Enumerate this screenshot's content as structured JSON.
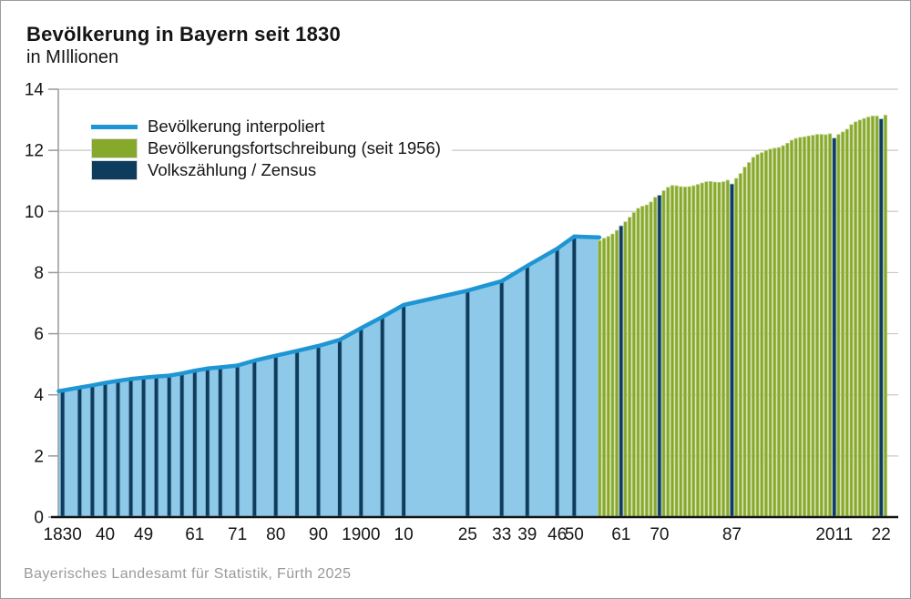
{
  "header": {
    "title": "Bevölkerung in Bayern seit 1830",
    "subtitle": "in MIllionen"
  },
  "footer": {
    "source": "Bayerisches Landesamt für Statistik, Fürth 2025"
  },
  "legend": {
    "items": [
      {
        "label": "Bevölkerung interpoliert",
        "type": "line",
        "color": "#1e96d4"
      },
      {
        "label": "Bevölkerungsfortschreibung (seit 1956)",
        "type": "box",
        "color": "#86a92c"
      },
      {
        "label": "Volkszählung / Zensus",
        "type": "box",
        "color": "#0d3c5d"
      }
    ]
  },
  "chart_data": {
    "type": "area+bar",
    "title": "Bevölkerung in Bayern seit 1830",
    "ylabel": "in Millionen",
    "ylim": [
      0,
      14
    ],
    "yticks": [
      0,
      2,
      4,
      6,
      8,
      10,
      12,
      14
    ],
    "grid": "horizontal",
    "legend_position": "top-left-inside",
    "xtick_labels": [
      {
        "year": 1830,
        "label": "1830"
      },
      {
        "year": 1840,
        "label": "40"
      },
      {
        "year": 1849,
        "label": "49"
      },
      {
        "year": 1861,
        "label": "61"
      },
      {
        "year": 1871,
        "label": "71"
      },
      {
        "year": 1880,
        "label": "80"
      },
      {
        "year": 1890,
        "label": "90"
      },
      {
        "year": 1900,
        "label": "1900"
      },
      {
        "year": 1910,
        "label": "10"
      },
      {
        "year": 1925,
        "label": "25"
      },
      {
        "year": 1933,
        "label": "33"
      },
      {
        "year": 1939,
        "label": "39"
      },
      {
        "year": 1946,
        "label": "46"
      },
      {
        "year": 1950,
        "label": "50"
      },
      {
        "year": 1961,
        "label": "61"
      },
      {
        "year": 1970,
        "label": "70"
      },
      {
        "year": 1987,
        "label": "87"
      },
      {
        "year": 2011,
        "label": "2011"
      },
      {
        "year": 2022,
        "label": "22"
      }
    ],
    "interpolated": {
      "name": "Bevölkerung interpoliert",
      "points": [
        [
          1829.1,
          4.12
        ],
        [
          1830,
          4.14
        ],
        [
          1834,
          4.24
        ],
        [
          1837,
          4.31
        ],
        [
          1840,
          4.39
        ],
        [
          1843,
          4.46
        ],
        [
          1846,
          4.52
        ],
        [
          1849,
          4.56
        ],
        [
          1852,
          4.6
        ],
        [
          1855,
          4.63
        ],
        [
          1858,
          4.7
        ],
        [
          1861,
          4.79
        ],
        [
          1864,
          4.86
        ],
        [
          1867,
          4.9
        ],
        [
          1871,
          4.96
        ],
        [
          1875,
          5.12
        ],
        [
          1880,
          5.28
        ],
        [
          1885,
          5.44
        ],
        [
          1890,
          5.6
        ],
        [
          1895,
          5.8
        ],
        [
          1900,
          6.18
        ],
        [
          1905,
          6.55
        ],
        [
          1910,
          6.94
        ],
        [
          1925,
          7.41
        ],
        [
          1933,
          7.72
        ],
        [
          1939,
          8.22
        ],
        [
          1946,
          8.78
        ],
        [
          1950,
          9.18
        ],
        [
          1955.9,
          9.15
        ]
      ]
    },
    "census_pre1956": {
      "name": "Volkszählung",
      "points": [
        [
          1830,
          4.14
        ],
        [
          1834,
          4.24
        ],
        [
          1837,
          4.31
        ],
        [
          1840,
          4.39
        ],
        [
          1843,
          4.46
        ],
        [
          1846,
          4.52
        ],
        [
          1849,
          4.56
        ],
        [
          1852,
          4.6
        ],
        [
          1855,
          4.63
        ],
        [
          1858,
          4.7
        ],
        [
          1861,
          4.79
        ],
        [
          1864,
          4.86
        ],
        [
          1867,
          4.9
        ],
        [
          1871,
          4.96
        ],
        [
          1875,
          5.12
        ],
        [
          1880,
          5.28
        ],
        [
          1885,
          5.44
        ],
        [
          1890,
          5.6
        ],
        [
          1895,
          5.8
        ],
        [
          1900,
          6.18
        ],
        [
          1905,
          6.55
        ],
        [
          1910,
          6.94
        ],
        [
          1925,
          7.41
        ],
        [
          1933,
          7.72
        ],
        [
          1939,
          8.22
        ],
        [
          1946,
          8.78
        ],
        [
          1950,
          9.18
        ]
      ]
    },
    "fortschreibung": {
      "name": "Bevölkerungsfortschreibung (seit 1956)",
      "start_year": 1956,
      "values": [
        9.05,
        9.12,
        9.18,
        9.26,
        9.38,
        9.53,
        9.66,
        9.81,
        9.96,
        10.1,
        10.17,
        10.21,
        10.31,
        10.46,
        10.53,
        10.68,
        10.79,
        10.85,
        10.84,
        10.81,
        10.8,
        10.81,
        10.84,
        10.88,
        10.93,
        10.97,
        10.98,
        10.96,
        10.95,
        10.97,
        11.02,
        10.9,
        11.08,
        11.24,
        11.45,
        11.6,
        11.77,
        11.86,
        11.92,
        11.99,
        12.04,
        12.07,
        12.09,
        12.15,
        12.23,
        12.33,
        12.39,
        12.42,
        12.44,
        12.47,
        12.49,
        12.52,
        12.52,
        12.51,
        12.54,
        12.4,
        12.52,
        12.6,
        12.69,
        12.84,
        12.93,
        12.99,
        13.04,
        13.09,
        13.12,
        13.12,
        13.03,
        13.15
      ]
    },
    "census_since1956": {
      "name": "Volkszählung / Zensus",
      "points": [
        [
          1961,
          9.53
        ],
        [
          1970,
          10.53
        ],
        [
          1987,
          10.9
        ],
        [
          2011,
          12.4
        ],
        [
          2022,
          13.03
        ]
      ]
    },
    "colors": {
      "line": "#1e96d4",
      "area": "#8fc9e9",
      "navy": "#0d3c5d",
      "navy_edge": "#7eb2d1",
      "navy_edge2": "#9cb6c6",
      "green": "#86a92c",
      "green_edge": "#b9cc7e",
      "grid": "#c8c8c8",
      "axis": "#999999",
      "xaxis": "#141414"
    }
  }
}
